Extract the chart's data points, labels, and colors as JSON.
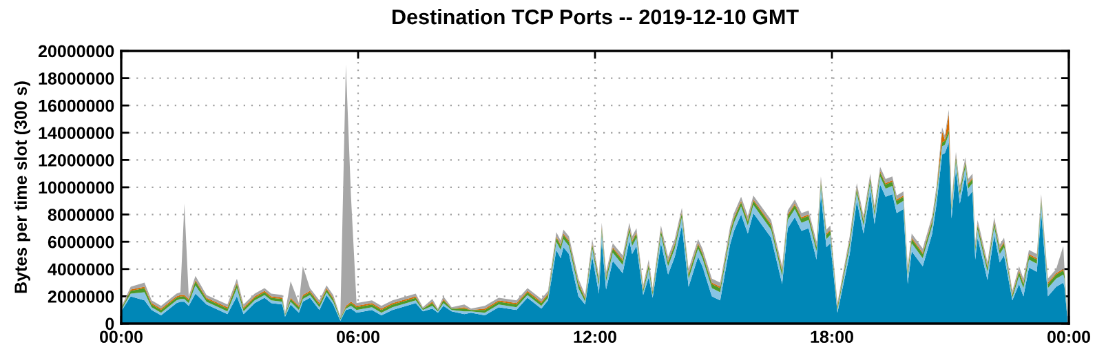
{
  "chart_data": {
    "type": "area",
    "stacked": true,
    "title": "Destination TCP Ports -- 2019-12-10 GMT",
    "ylabel": "Bytes per time slot (300 s)",
    "x": [
      0.0,
      0.24,
      0.59,
      0.77,
      1.01,
      1.4,
      1.5,
      1.6,
      1.71,
      1.88,
      2.16,
      2.69,
      2.93,
      3.1,
      3.38,
      3.63,
      3.8,
      4.08,
      4.15,
      4.29,
      4.5,
      4.6,
      4.78,
      5.02,
      5.2,
      5.37,
      5.55,
      5.69,
      5.82,
      5.96,
      6.35,
      6.59,
      6.87,
      7.46,
      7.64,
      7.88,
      8.02,
      8.16,
      8.37,
      8.69,
      8.86,
      9.21,
      9.56,
      10.01,
      10.29,
      10.64,
      10.81,
      11.02,
      11.13,
      11.2,
      11.34,
      11.58,
      11.75,
      11.93,
      12.1,
      12.17,
      12.28,
      12.45,
      12.7,
      12.87,
      12.94,
      13.05,
      13.22,
      13.36,
      13.46,
      13.67,
      13.85,
      14.02,
      14.2,
      14.37,
      14.61,
      14.72,
      14.96,
      15.17,
      15.42,
      15.52,
      15.7,
      15.87,
      16.01,
      16.46,
      16.74,
      16.88,
      17.06,
      17.23,
      17.41,
      17.61,
      17.72,
      17.86,
      17.96,
      18.14,
      18.45,
      18.63,
      18.8,
      18.97,
      19.08,
      19.22,
      19.36,
      19.53,
      19.64,
      19.81,
      19.92,
      20.02,
      20.3,
      20.54,
      20.65,
      20.79,
      20.86,
      20.96,
      21.03,
      21.14,
      21.24,
      21.38,
      21.45,
      21.56,
      21.63,
      21.69,
      21.94,
      22.11,
      22.25,
      22.36,
      22.57,
      22.74,
      22.85,
      22.99,
      23.19,
      23.3,
      23.47,
      23.68,
      23.86,
      23.89,
      23.96
    ],
    "series": [
      {
        "color": "#0087b7",
        "values": [
          900000,
          2000000,
          1700000,
          1000000,
          600000,
          1500000,
          1600000,
          1600000,
          1300000,
          2200000,
          1400000,
          700000,
          2000000,
          700000,
          1500000,
          1900000,
          1500000,
          1400000,
          500000,
          1400000,
          800000,
          1600000,
          1900000,
          1000000,
          2100000,
          1400000,
          200000,
          1000000,
          1100000,
          800000,
          1000000,
          600000,
          1000000,
          1500000,
          900000,
          1100000,
          800000,
          1300000,
          900000,
          700000,
          800000,
          600000,
          1200000,
          1000000,
          1900000,
          1100000,
          1700000,
          5400000,
          4800000,
          5600000,
          5100000,
          2000000,
          1400000,
          4900000,
          2200000,
          6100000,
          2500000,
          4600000,
          3700000,
          6100000,
          5100000,
          5700000,
          2100000,
          3400000,
          1900000,
          5900000,
          3600000,
          4900000,
          7200000,
          2700000,
          4900000,
          4200000,
          2000000,
          1700000,
          5800000,
          6800000,
          8000000,
          6600000,
          8100000,
          6300000,
          2900000,
          7000000,
          7800000,
          6800000,
          7000000,
          4700000,
          9500000,
          5600000,
          5900000,
          800000,
          5100000,
          9000000,
          6600000,
          9700000,
          7300000,
          10200000,
          9300000,
          9500000,
          8100000,
          8400000,
          2900000,
          5300000,
          4200000,
          6600000,
          8800000,
          12400000,
          12500000,
          13300000,
          7700000,
          11300000,
          8800000,
          10900000,
          9300000,
          9700000,
          4700000,
          6300000,
          3200000,
          6500000,
          4500000,
          5000000,
          1700000,
          2900000,
          2000000,
          4100000,
          3800000,
          8200000,
          2000000,
          2700000,
          3000000,
          2700000,
          500000
        ]
      },
      {
        "color": "#88c4e4",
        "values": [
          100000,
          200000,
          600000,
          200000,
          200000,
          200000,
          200000,
          200000,
          200000,
          600000,
          200000,
          200000,
          600000,
          200000,
          200000,
          200000,
          200000,
          200000,
          100000,
          200000,
          200000,
          200000,
          200000,
          200000,
          200000,
          200000,
          100000,
          100000,
          200000,
          200000,
          200000,
          200000,
          200000,
          200000,
          100000,
          200000,
          100000,
          200000,
          100000,
          200000,
          100000,
          200000,
          200000,
          200000,
          200000,
          200000,
          200000,
          600000,
          600000,
          600000,
          600000,
          600000,
          200000,
          600000,
          600000,
          600000,
          600000,
          600000,
          600000,
          600000,
          600000,
          600000,
          200000,
          600000,
          200000,
          600000,
          600000,
          600000,
          600000,
          600000,
          600000,
          600000,
          600000,
          600000,
          600000,
          600000,
          600000,
          600000,
          600000,
          600000,
          600000,
          600000,
          600000,
          600000,
          600000,
          600000,
          600000,
          600000,
          600000,
          200000,
          600000,
          600000,
          600000,
          600000,
          600000,
          600000,
          600000,
          600000,
          600000,
          600000,
          600000,
          600000,
          600000,
          600000,
          600000,
          600000,
          600000,
          600000,
          600000,
          600000,
          600000,
          600000,
          600000,
          600000,
          600000,
          600000,
          600000,
          600000,
          600000,
          600000,
          200000,
          600000,
          600000,
          600000,
          600000,
          600000,
          600000,
          600000,
          600000,
          600000,
          100000
        ]
      },
      {
        "color": "#4c9a2a",
        "values": [
          100000,
          200000,
          300000,
          200000,
          200000,
          200000,
          200000,
          200000,
          200000,
          300000,
          200000,
          200000,
          300000,
          200000,
          200000,
          200000,
          200000,
          200000,
          100000,
          200000,
          200000,
          200000,
          200000,
          200000,
          200000,
          200000,
          100000,
          100000,
          200000,
          200000,
          200000,
          200000,
          200000,
          200000,
          100000,
          200000,
          100000,
          200000,
          100000,
          200000,
          100000,
          200000,
          200000,
          200000,
          200000,
          200000,
          200000,
          300000,
          300000,
          300000,
          300000,
          300000,
          200000,
          300000,
          300000,
          300000,
          300000,
          300000,
          300000,
          300000,
          300000,
          300000,
          200000,
          300000,
          200000,
          300000,
          300000,
          300000,
          300000,
          300000,
          300000,
          300000,
          300000,
          300000,
          300000,
          300000,
          300000,
          300000,
          300000,
          300000,
          300000,
          300000,
          300000,
          300000,
          300000,
          300000,
          300000,
          300000,
          300000,
          200000,
          300000,
          300000,
          300000,
          300000,
          300000,
          300000,
          300000,
          300000,
          300000,
          300000,
          300000,
          300000,
          300000,
          300000,
          300000,
          300000,
          300000,
          300000,
          300000,
          300000,
          300000,
          300000,
          300000,
          300000,
          300000,
          300000,
          300000,
          300000,
          300000,
          300000,
          200000,
          300000,
          300000,
          300000,
          300000,
          300000,
          300000,
          300000,
          300000,
          300000,
          100000
        ]
      },
      {
        "color": "#d46a00",
        "values": [
          0,
          100000,
          100000,
          100000,
          100000,
          100000,
          100000,
          100000,
          100000,
          100000,
          100000,
          100000,
          100000,
          100000,
          100000,
          100000,
          100000,
          100000,
          0,
          100000,
          100000,
          100000,
          100000,
          100000,
          100000,
          100000,
          0,
          100000,
          100000,
          100000,
          100000,
          100000,
          100000,
          100000,
          0,
          100000,
          0,
          100000,
          0,
          100000,
          0,
          100000,
          100000,
          100000,
          100000,
          100000,
          100000,
          100000,
          100000,
          100000,
          100000,
          100000,
          100000,
          100000,
          100000,
          100000,
          100000,
          100000,
          100000,
          100000,
          100000,
          100000,
          100000,
          100000,
          100000,
          100000,
          100000,
          100000,
          100000,
          100000,
          100000,
          100000,
          100000,
          100000,
          100000,
          100000,
          100000,
          100000,
          100000,
          100000,
          100000,
          100000,
          100000,
          100000,
          100000,
          100000,
          100000,
          100000,
          100000,
          100000,
          100000,
          100000,
          100000,
          100000,
          100000,
          100000,
          100000,
          100000,
          100000,
          100000,
          100000,
          100000,
          100000,
          100000,
          100000,
          800000,
          100000,
          1200000,
          100000,
          100000,
          100000,
          100000,
          100000,
          100000,
          100000,
          100000,
          100000,
          100000,
          100000,
          100000,
          100000,
          100000,
          100000,
          100000,
          100000,
          100000,
          100000,
          100000,
          100000,
          100000,
          0
        ]
      },
      {
        "color": "#a6a6a6",
        "values": [
          100000,
          200000,
          300000,
          200000,
          200000,
          200000,
          200000,
          6700000,
          200000,
          300000,
          200000,
          200000,
          300000,
          200000,
          200000,
          200000,
          200000,
          200000,
          100000,
          1200000,
          200000,
          2100000,
          200000,
          200000,
          200000,
          200000,
          100000,
          17700000,
          7700000,
          200000,
          200000,
          200000,
          200000,
          200000,
          100000,
          200000,
          100000,
          200000,
          100000,
          200000,
          100000,
          200000,
          200000,
          200000,
          200000,
          200000,
          200000,
          300000,
          300000,
          300000,
          300000,
          300000,
          200000,
          300000,
          300000,
          300000,
          300000,
          300000,
          300000,
          300000,
          300000,
          300000,
          200000,
          300000,
          200000,
          300000,
          300000,
          300000,
          300000,
          300000,
          300000,
          300000,
          300000,
          300000,
          300000,
          300000,
          300000,
          300000,
          300000,
          300000,
          300000,
          300000,
          300000,
          300000,
          300000,
          300000,
          300000,
          300000,
          300000,
          200000,
          300000,
          300000,
          300000,
          300000,
          300000,
          300000,
          300000,
          300000,
          300000,
          300000,
          300000,
          300000,
          300000,
          300000,
          300000,
          300000,
          300000,
          300000,
          300000,
          300000,
          300000,
          300000,
          300000,
          300000,
          300000,
          300000,
          300000,
          300000,
          300000,
          300000,
          200000,
          300000,
          300000,
          300000,
          300000,
          300000,
          300000,
          300000,
          1700000,
          300000,
          100000
        ]
      }
    ],
    "xlim": [
      0,
      24
    ],
    "xticks": [
      {
        "value": 0,
        "label": "00:00"
      },
      {
        "value": 6,
        "label": "06:00"
      },
      {
        "value": 12,
        "label": "12:00"
      },
      {
        "value": 18,
        "label": "18:00"
      },
      {
        "value": 24,
        "label": "00:00"
      }
    ],
    "ylim": [
      0,
      20000000
    ],
    "yticks": [
      0,
      2000000,
      4000000,
      6000000,
      8000000,
      10000000,
      12000000,
      14000000,
      16000000,
      18000000,
      20000000
    ],
    "grid": true
  }
}
